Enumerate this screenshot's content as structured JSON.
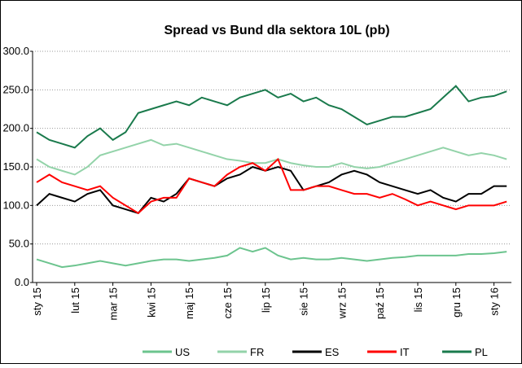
{
  "chart_data": {
    "type": "line",
    "title": "Spread vs Bund dla sektora 10L (pb)",
    "categories": [
      "sty 15",
      null,
      null,
      "lut 15",
      null,
      null,
      "mar 15",
      null,
      null,
      "kwi 15",
      null,
      null,
      "maj 15",
      null,
      null,
      "cze 15",
      null,
      null,
      "lip 15",
      null,
      null,
      "sie 15",
      null,
      null,
      "wrz 15",
      null,
      null,
      "paź 15",
      null,
      null,
      "lis 15",
      null,
      null,
      "gru 15",
      null,
      null,
      "sty 16",
      null
    ],
    "series": [
      {
        "name": "US",
        "color": "#6cc48e",
        "values": [
          30,
          25,
          20,
          22,
          25,
          28,
          25,
          22,
          25,
          28,
          30,
          30,
          28,
          30,
          32,
          35,
          45,
          40,
          45,
          35,
          30,
          32,
          30,
          30,
          32,
          30,
          28,
          30,
          32,
          33,
          35,
          35,
          35,
          35,
          37,
          37,
          38,
          40
        ]
      },
      {
        "name": "FR",
        "color": "#93d3a9",
        "values": [
          160,
          150,
          145,
          140,
          150,
          165,
          170,
          175,
          180,
          185,
          178,
          180,
          175,
          170,
          165,
          160,
          158,
          155,
          155,
          160,
          155,
          152,
          150,
          150,
          155,
          150,
          148,
          150,
          155,
          160,
          165,
          170,
          175,
          170,
          165,
          168,
          165,
          160
        ]
      },
      {
        "name": "ES",
        "color": "#000000",
        "values": [
          100,
          115,
          110,
          105,
          115,
          120,
          100,
          95,
          90,
          110,
          105,
          115,
          135,
          130,
          125,
          135,
          140,
          150,
          145,
          150,
          145,
          120,
          125,
          130,
          140,
          145,
          140,
          130,
          125,
          120,
          115,
          120,
          110,
          105,
          115,
          115,
          125,
          125
        ]
      },
      {
        "name": "IT",
        "color": "#ff0000",
        "values": [
          130,
          140,
          130,
          125,
          120,
          125,
          110,
          100,
          90,
          105,
          110,
          110,
          135,
          130,
          125,
          140,
          150,
          155,
          145,
          160,
          120,
          120,
          125,
          125,
          120,
          115,
          115,
          110,
          115,
          108,
          100,
          105,
          100,
          95,
          100,
          100,
          100,
          105
        ]
      },
      {
        "name": "PL",
        "color": "#1a7a4c",
        "values": [
          195,
          185,
          180,
          175,
          190,
          200,
          185,
          195,
          220,
          225,
          230,
          235,
          230,
          240,
          235,
          230,
          240,
          245,
          250,
          240,
          245,
          235,
          240,
          230,
          225,
          215,
          205,
          210,
          215,
          215,
          220,
          225,
          240,
          255,
          235,
          240,
          242,
          248
        ]
      }
    ],
    "ylim": [
      0,
      300
    ],
    "yticks": [
      {
        "value": 0,
        "label": "0.0"
      },
      {
        "value": 50,
        "label": "50.0"
      },
      {
        "value": 100,
        "label": "100.0"
      },
      {
        "value": 150,
        "label": "150.0"
      },
      {
        "value": 200,
        "label": "200.0"
      },
      {
        "value": 250,
        "label": "250.0"
      },
      {
        "value": 300,
        "label": "300.0"
      }
    ],
    "grid": true,
    "legend": "bottom"
  }
}
